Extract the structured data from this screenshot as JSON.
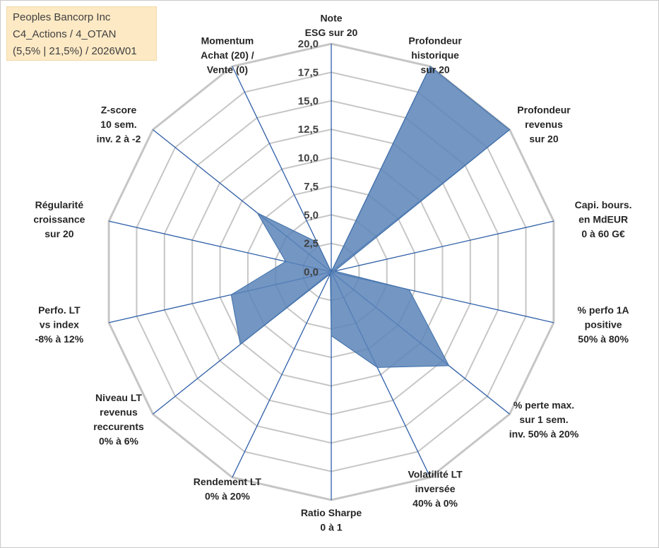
{
  "title_box": {
    "line1": "Peoples Bancorp Inc",
    "line2": "C4_Actions / 4_OTAN",
    "line3": "(5,5% | 21,5%) / 2026W01"
  },
  "colors": {
    "fill": "#5b84b8",
    "stroke": "#3f6fa8",
    "spoke": "#2e5ea8",
    "grid": "#c6c6c6",
    "title_bg": "#fde9c4"
  },
  "chart_data": {
    "type": "radar",
    "r_min": 0,
    "r_max": 20,
    "ticks": [
      "0,0",
      "2,5",
      "5,0",
      "7,5",
      "10,0",
      "12,5",
      "15,0",
      "17,5",
      "20,0"
    ],
    "tick_values": [
      0,
      2.5,
      5,
      7.5,
      10,
      12.5,
      15,
      17.5,
      20
    ],
    "axes": [
      {
        "lines": [
          "Note",
          "ESG sur 20"
        ],
        "value": 0
      },
      {
        "lines": [
          "Profondeur",
          "historique",
          "sur 20"
        ],
        "value": 20
      },
      {
        "lines": [
          "Profondeur",
          "revenus",
          "sur 20"
        ],
        "value": 20
      },
      {
        "lines": [
          "Capi. bours.",
          "en MdEUR",
          "0 à 60 G€"
        ],
        "value": 0.3
      },
      {
        "lines": [
          "% perfo 1A",
          "positive",
          "50% à 80%"
        ],
        "value": 7
      },
      {
        "lines": [
          "% perte max.",
          "sur 1 sem.",
          "inv. 50% à 20%"
        ],
        "value": 13.2
      },
      {
        "lines": [
          "Volatilité LT",
          "inversée",
          "40% à 0%"
        ],
        "value": 9.3
      },
      {
        "lines": [
          "Ratio Sharpe",
          "0 à 1"
        ],
        "value": 5.6
      },
      {
        "lines": [
          "Rendement LT",
          "0% à 20%"
        ],
        "value": 0.2
      },
      {
        "lines": [
          "Niveau LT",
          "revenus",
          "reccurents",
          "0% à 6%"
        ],
        "value": 10.2
      },
      {
        "lines": [
          "Perfo. LT",
          "vs index",
          "-8% à 12%"
        ],
        "value": 9
      },
      {
        "lines": [
          "Régularité",
          "croissance",
          "sur 20"
        ],
        "value": 4.1
      },
      {
        "lines": [
          "Z-score",
          "10 sem.",
          "inv. 2 à -2"
        ],
        "value": 8.3
      },
      {
        "lines": [
          "Momentum",
          "Achat (20) /",
          "Vente (0)"
        ],
        "value": 2.9
      }
    ]
  }
}
